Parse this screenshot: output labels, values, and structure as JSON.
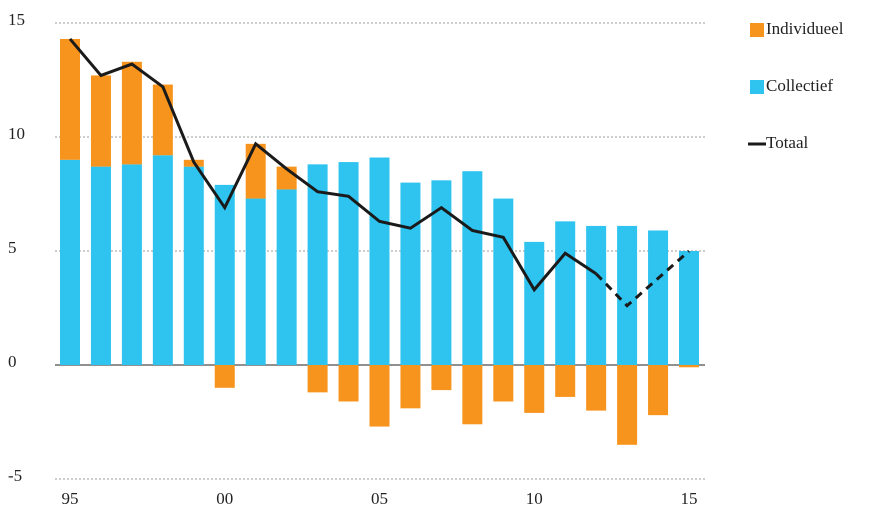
{
  "chart_data": {
    "type": "stacked_bar_line",
    "categories": [
      "95",
      null,
      null,
      null,
      null,
      "00",
      null,
      null,
      null,
      null,
      "05",
      null,
      null,
      null,
      null,
      "10",
      null,
      null,
      null,
      null,
      "15"
    ],
    "series": [
      {
        "name": "Individueel",
        "color": "#f7941d",
        "kind": "bar",
        "values": [
          5.3,
          4.0,
          4.5,
          3.1,
          0.3,
          -1.0,
          2.4,
          1.0,
          -1.2,
          -1.6,
          -2.7,
          -1.9,
          -1.1,
          -2.6,
          -1.6,
          -2.1,
          -1.4,
          -2.0,
          -3.5,
          -2.2,
          -0.1
        ]
      },
      {
        "name": "Collectief",
        "color": "#2ec4ef",
        "kind": "bar",
        "values": [
          9.0,
          8.7,
          8.8,
          9.2,
          8.7,
          7.9,
          7.3,
          7.7,
          8.8,
          8.9,
          9.1,
          8.0,
          8.1,
          8.5,
          7.3,
          5.4,
          6.3,
          6.1,
          6.1,
          5.9,
          5.0
        ]
      },
      {
        "name": "Totaal",
        "color": "#1a1a1a",
        "kind": "line",
        "dashed_from": 17,
        "values": [
          14.3,
          12.7,
          13.2,
          12.2,
          8.9,
          6.9,
          9.7,
          8.6,
          7.6,
          7.4,
          6.3,
          6.0,
          6.9,
          5.9,
          5.6,
          3.3,
          4.9,
          4.0,
          2.6,
          3.8,
          5.0
        ]
      }
    ],
    "ylim": [
      -5,
      15
    ],
    "yticks": [
      -5,
      0,
      5,
      10,
      15
    ],
    "grid": true,
    "legend": "right"
  }
}
